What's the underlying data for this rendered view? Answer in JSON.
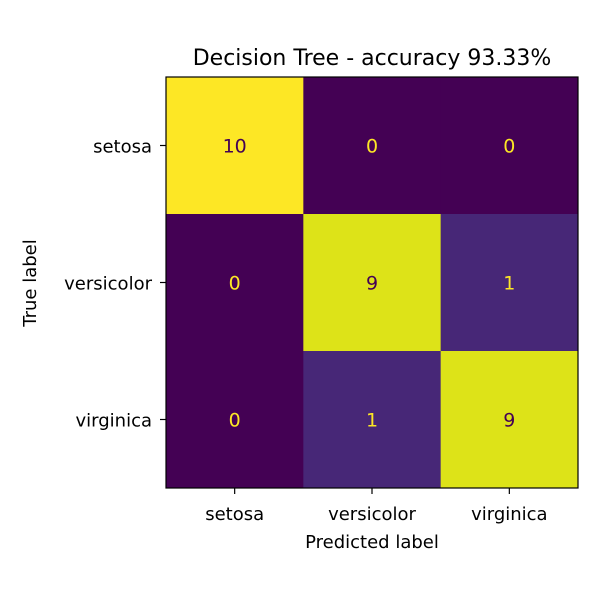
{
  "chart_data": {
    "type": "heatmap",
    "title": "Decision Tree - accuracy 93.33%",
    "xlabel": "Predicted label",
    "ylabel": "True label",
    "x_categories": [
      "setosa",
      "versicolor",
      "virginica"
    ],
    "y_categories": [
      "setosa",
      "versicolor",
      "virginica"
    ],
    "values": [
      [
        10,
        0,
        0
      ],
      [
        0,
        9,
        1
      ],
      [
        0,
        1,
        9
      ]
    ],
    "colormap": "viridis",
    "value_range": [
      0,
      10
    ],
    "grid": false,
    "colors": {
      "low": "#440154",
      "high": "#fde725",
      "text_on_dark": "#fde725",
      "text_on_light": "#440154",
      "axes": "#000000"
    }
  }
}
